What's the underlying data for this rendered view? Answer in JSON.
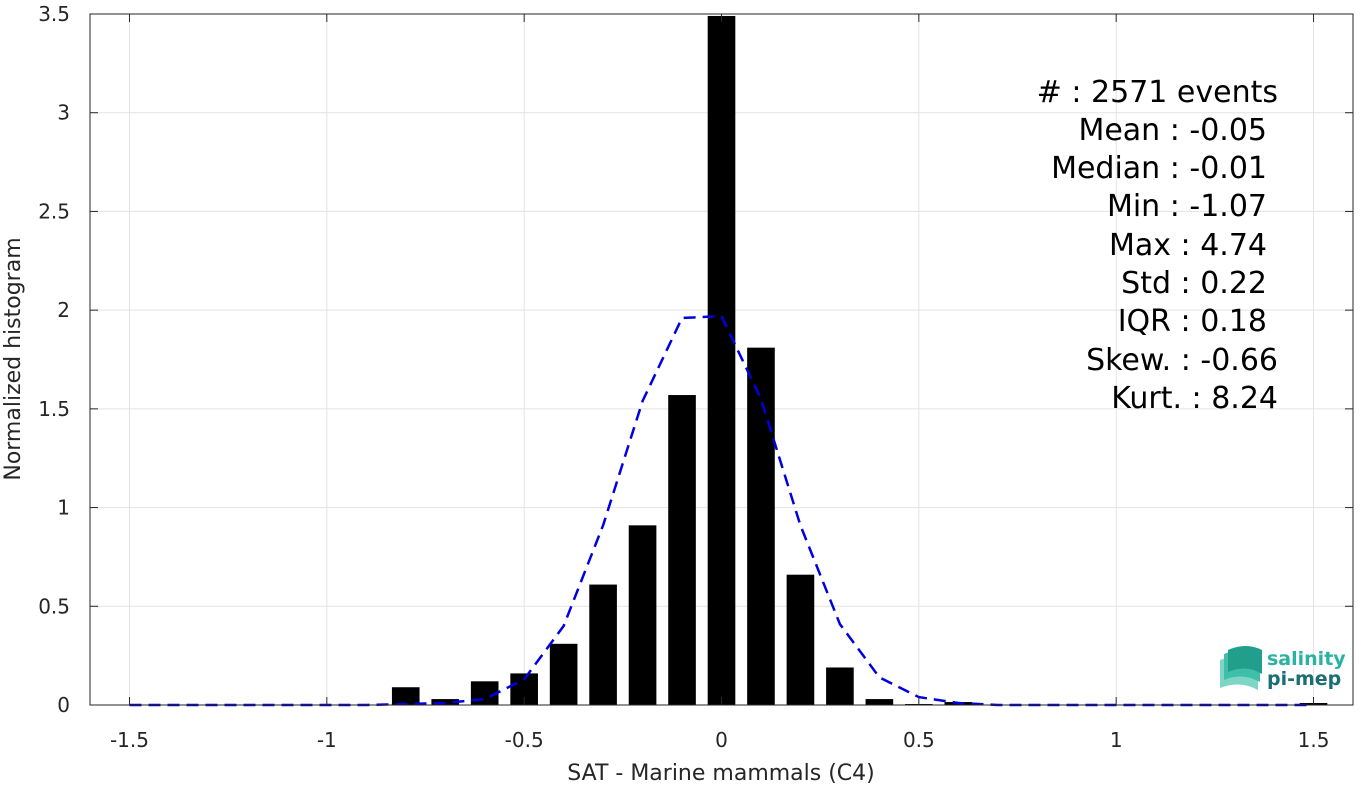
{
  "chart_data": {
    "type": "bar",
    "xlabel": "SAT - Marine mammals (C4)",
    "ylabel": "Normalized histogram",
    "xlim": [
      -1.6,
      1.6
    ],
    "ylim": [
      0,
      3.5
    ],
    "grid": true,
    "xticks": [
      "-1.5",
      "-1",
      "-0.5",
      "0",
      "0.5",
      "1",
      "1.5"
    ],
    "xtick_values": [
      -1.5,
      -1,
      -0.5,
      0,
      0.5,
      1,
      1.5
    ],
    "yticks": [
      "0",
      "0.5",
      "1",
      "1.5",
      "2",
      "2.5",
      "3",
      "3.5"
    ],
    "ytick_values": [
      0,
      0.5,
      1,
      1.5,
      2,
      2.5,
      3,
      3.5
    ],
    "bin_width": 0.1,
    "series": [
      {
        "kind": "bars",
        "color": "#000000",
        "x": [
          -0.8,
          -0.7,
          -0.6,
          -0.5,
          -0.4,
          -0.3,
          -0.2,
          -0.1,
          0.0,
          0.1,
          0.2,
          0.3,
          0.4,
          0.5,
          0.6,
          1.5
        ],
        "values": [
          0.09,
          0.03,
          0.12,
          0.16,
          0.31,
          0.61,
          0.91,
          1.57,
          3.49,
          1.81,
          0.66,
          0.19,
          0.03,
          0.005,
          0.015,
          0.01
        ]
      },
      {
        "kind": "dashed-line",
        "color": "#0000e0",
        "x": [
          -1.5,
          -1.3,
          -1.1,
          -0.9,
          -0.7,
          -0.6,
          -0.5,
          -0.4,
          -0.3,
          -0.2,
          -0.1,
          0.0,
          0.1,
          0.2,
          0.3,
          0.4,
          0.5,
          0.6,
          0.7,
          0.9,
          1.1,
          1.3,
          1.5
        ],
        "values": [
          0.0,
          0.0,
          0.0,
          0.0,
          0.01,
          0.03,
          0.13,
          0.4,
          0.91,
          1.54,
          1.96,
          1.97,
          1.55,
          0.91,
          0.41,
          0.14,
          0.04,
          0.01,
          0.0,
          0.0,
          0.0,
          0.0,
          0.0
        ]
      }
    ]
  },
  "stats": [
    "#  : 2571 events",
    "Mean : -0.05",
    "Median : -0.01",
    "Min : -1.07",
    "Max : 4.74",
    "Std : 0.22",
    "IQR : 0.18",
    "Skew. : -0.66",
    "Kurt. : 8.24"
  ],
  "logo": {
    "line1": "salinity",
    "line2": "pi-mep",
    "color1": "#29b3a0",
    "color2": "#1b6e74"
  }
}
